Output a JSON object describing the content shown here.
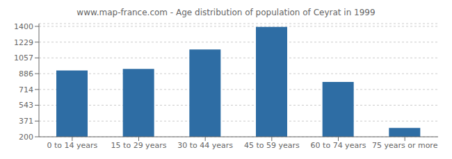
{
  "chart_data": {
    "type": "bar",
    "title": "www.map-france.com - Age distribution of population of Ceyrat in 1999",
    "categories": [
      "0 to 14 years",
      "15 to 29 years",
      "30 to 44 years",
      "45 to 59 years",
      "60 to 74 years",
      "75 years or more"
    ],
    "values": [
      921,
      938,
      1148,
      1395,
      796,
      297
    ],
    "color": "#2e6da4",
    "ylim": [
      200,
      1430
    ],
    "yticks": [
      200,
      371,
      543,
      714,
      886,
      1057,
      1229,
      1400
    ],
    "grid": true
  }
}
